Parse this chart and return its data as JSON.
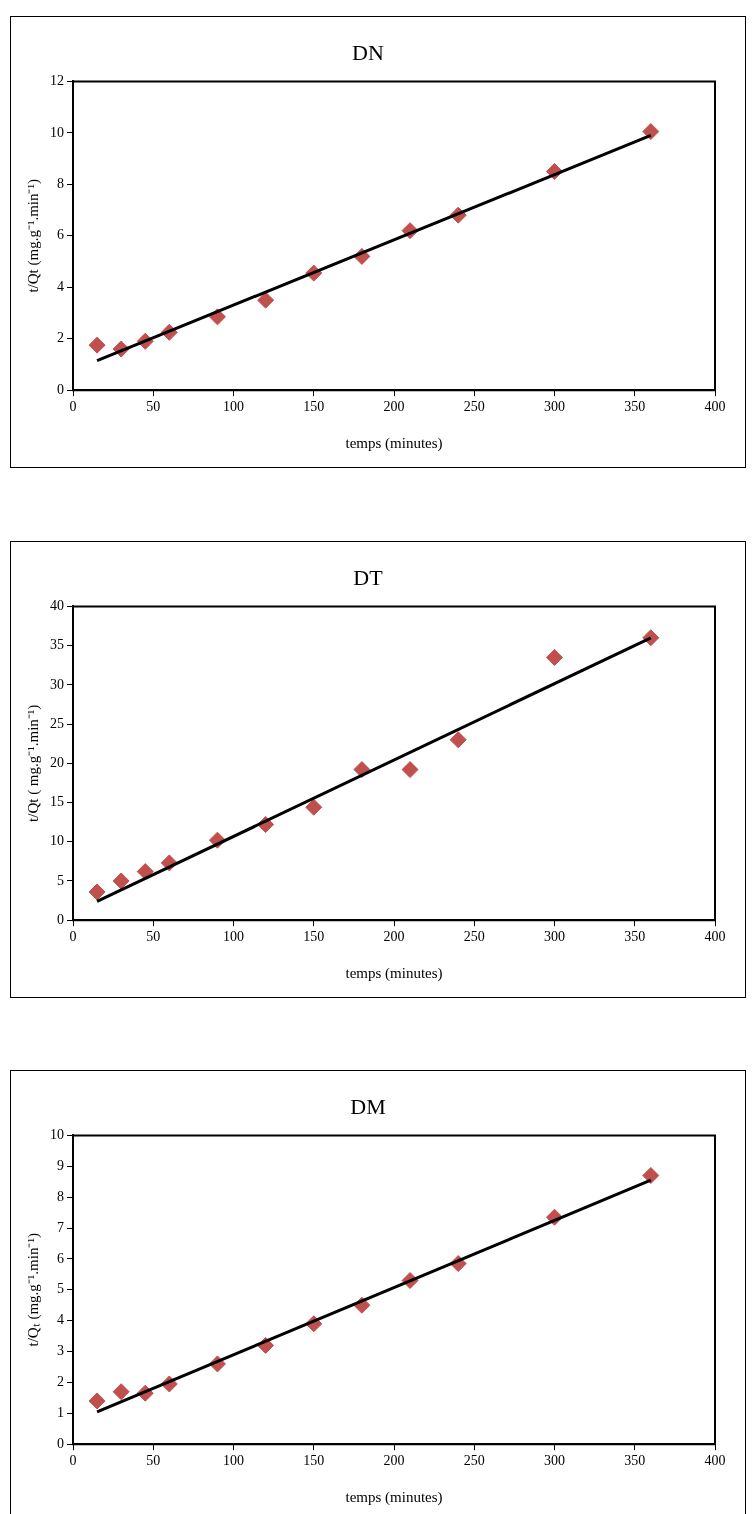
{
  "chart_data": [
    {
      "type": "scatter",
      "title": "DN",
      "xlabel": "temps (minutes)",
      "ylabel": "t/Qt (mg.g⁻¹.min⁻¹)",
      "xlim": [
        0,
        400
      ],
      "xticks": [
        0,
        50,
        100,
        150,
        200,
        250,
        300,
        350,
        400
      ],
      "ylim": [
        0,
        12
      ],
      "yticks": [
        0,
        2,
        4,
        6,
        8,
        10,
        12
      ],
      "grid": false,
      "legend": false,
      "marker": "diamond",
      "series": [
        {
          "type": "scatter",
          "color": "#c0504d",
          "x": [
            15,
            30,
            45,
            60,
            90,
            120,
            150,
            180,
            210,
            240,
            300,
            360
          ],
          "values": [
            1.75,
            1.6,
            1.9,
            2.25,
            2.85,
            3.5,
            4.55,
            5.2,
            6.2,
            6.8,
            8.5,
            10.05
          ]
        },
        {
          "type": "line",
          "color": "#000000",
          "marker": "none",
          "x": [
            15,
            360
          ],
          "values": [
            1.15,
            9.9
          ]
        }
      ]
    },
    {
      "type": "scatter",
      "title": "DT",
      "xlabel": "temps (minutes)",
      "ylabel": "t/Qt ( mg.g⁻¹.min⁻¹)",
      "xlim": [
        0,
        400
      ],
      "xticks": [
        0,
        50,
        100,
        150,
        200,
        250,
        300,
        350,
        400
      ],
      "ylim": [
        0,
        40
      ],
      "yticks": [
        0,
        5,
        10,
        15,
        20,
        25,
        30,
        35,
        40
      ],
      "grid": false,
      "legend": false,
      "marker": "diamond",
      "series": [
        {
          "type": "scatter",
          "color": "#c0504d",
          "x": [
            15,
            30,
            45,
            60,
            90,
            120,
            150,
            180,
            210,
            240,
            300,
            360
          ],
          "values": [
            3.6,
            5,
            6.2,
            7.3,
            10.2,
            12.2,
            14.4,
            19.2,
            19.2,
            23,
            33.5,
            36
          ]
        },
        {
          "type": "line",
          "color": "#000000",
          "marker": "none",
          "x": [
            15,
            360
          ],
          "values": [
            2.4,
            36
          ]
        }
      ]
    },
    {
      "type": "scatter",
      "title": "DM",
      "xlabel": "temps (minutes)",
      "ylabel": "t/Qₜ (mg.g⁻¹.min⁻¹)",
      "xlim": [
        0,
        400
      ],
      "xticks": [
        0,
        50,
        100,
        150,
        200,
        250,
        300,
        350,
        400
      ],
      "ylim": [
        0,
        10
      ],
      "yticks": [
        0,
        1,
        2,
        3,
        4,
        5,
        6,
        7,
        8,
        9,
        10
      ],
      "grid": false,
      "legend": false,
      "marker": "diamond",
      "series": [
        {
          "type": "scatter",
          "color": "#c0504d",
          "x": [
            15,
            30,
            45,
            60,
            90,
            120,
            150,
            180,
            210,
            240,
            300,
            360
          ],
          "values": [
            1.4,
            1.7,
            1.65,
            1.95,
            2.6,
            3.2,
            3.9,
            4.5,
            5.3,
            5.85,
            7.35,
            8.7
          ]
        },
        {
          "type": "line",
          "color": "#000000",
          "marker": "none",
          "x": [
            15,
            360
          ],
          "values": [
            1.05,
            8.55
          ]
        }
      ]
    }
  ]
}
